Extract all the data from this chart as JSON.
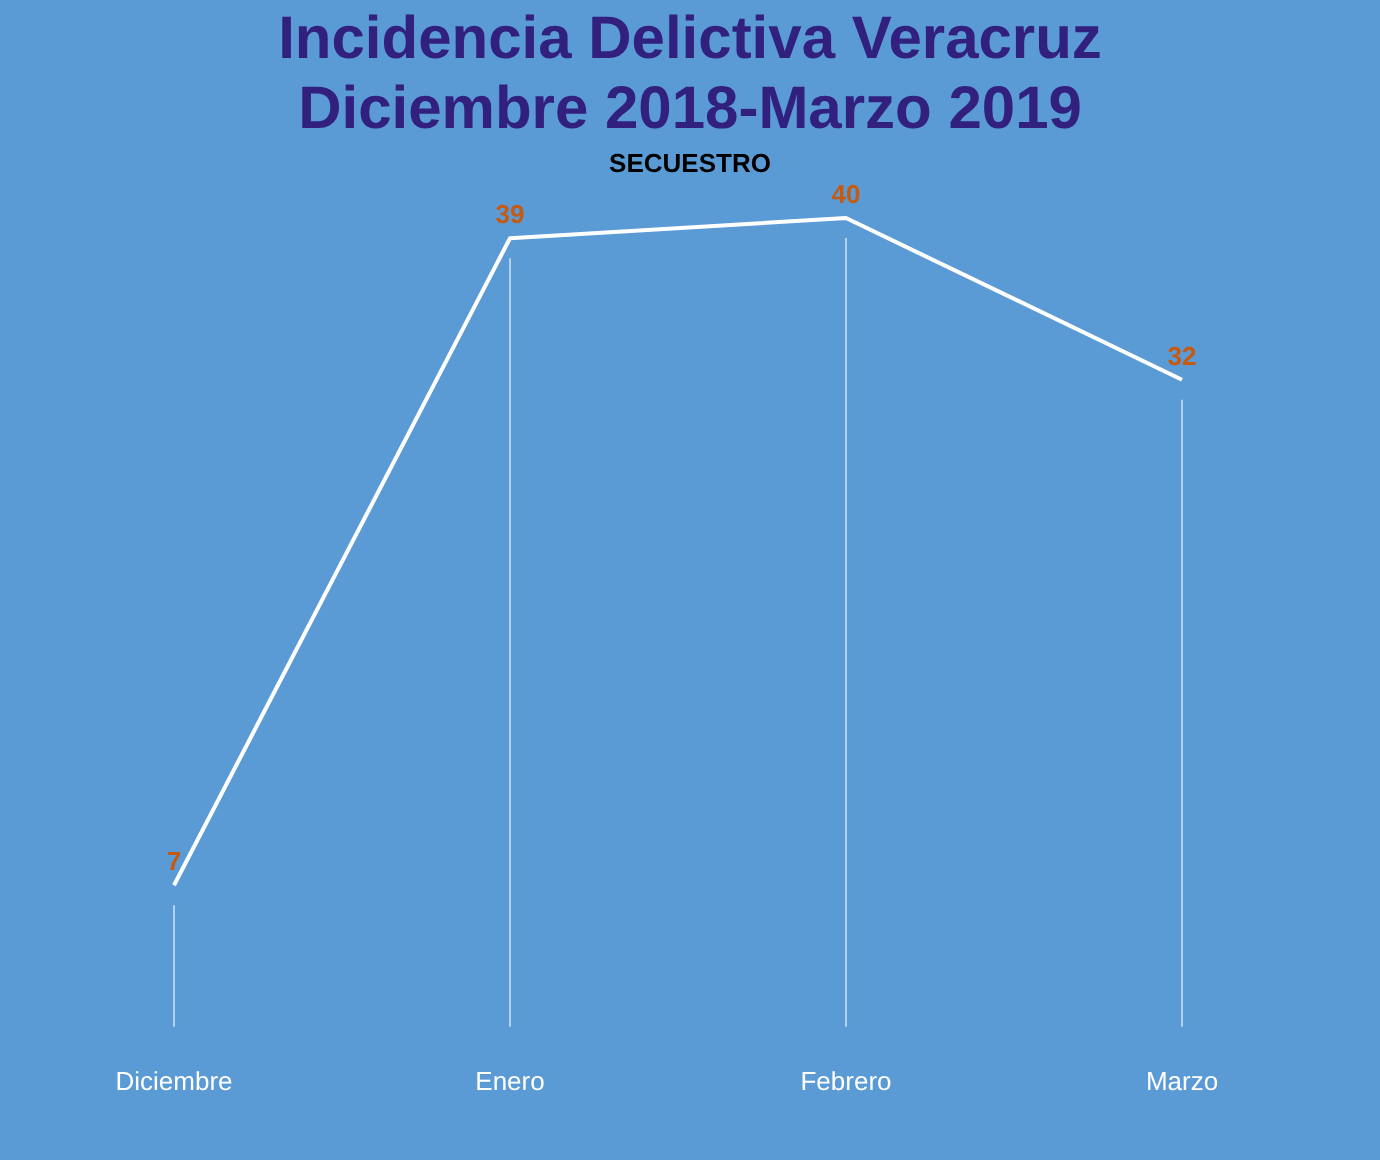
{
  "chart_data": {
    "type": "line",
    "title": "Incidencia Delictiva Veracruz Diciembre 2018-Marzo 2019",
    "subtitle": "SECUESTRO",
    "categories": [
      "Diciembre",
      "Enero",
      "Febrero",
      "Marzo"
    ],
    "series": [
      {
        "color": "#ffffff",
        "values": [
          7,
          39,
          40,
          32
        ]
      }
    ],
    "data_labels": true,
    "grid": "x",
    "legend": false,
    "marker": "none",
    "tick_labels": "x"
  }
}
